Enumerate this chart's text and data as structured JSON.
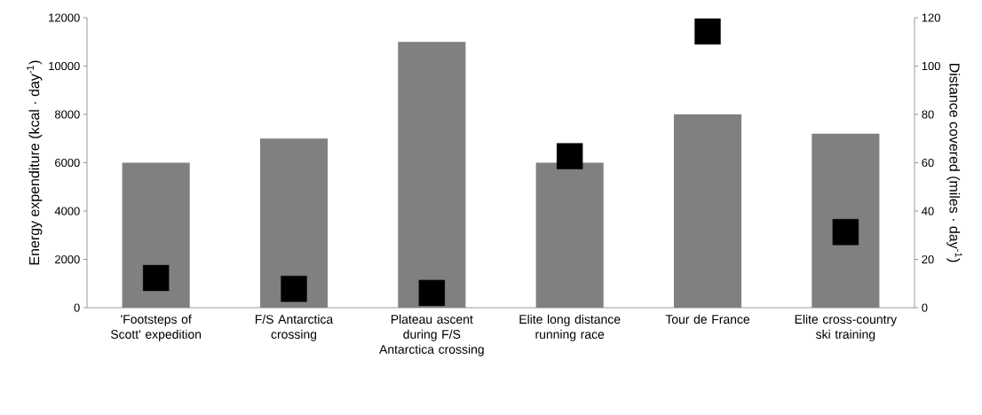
{
  "chart_data": {
    "type": "bar",
    "ylabel": "Energy expenditure (kcal · day$^{-1}$)",
    "y2label": "Distance covered (miles · day$^{-1}$)",
    "categories": [
      "'Footsteps of Scott' expedition",
      "F/S Antarctica crossing",
      "Plateau ascent during F/S Antarctica crossing",
      "Elite long distance running race",
      "Tour de France",
      "Elite cross-country ski training"
    ],
    "series": [
      {
        "type": "bar",
        "color": "#808080",
        "values": [
          6000,
          7000,
          11000,
          6000,
          8000,
          7200
        ]
      },
      {
        "type": "scatter",
        "axis": "y2",
        "color": "#000000",
        "values": [
          12.3,
          7.8,
          6.1,
          62.7,
          114.3,
          31.3
        ]
      }
    ],
    "ylim": [
      0,
      12000
    ],
    "yticks": [
      0,
      2000,
      4000,
      6000,
      8000,
      10000,
      12000
    ],
    "y2lim": [
      0,
      120
    ],
    "y2ticks": [
      0,
      20,
      40,
      60,
      80,
      100,
      120
    ],
    "marker": "square"
  }
}
